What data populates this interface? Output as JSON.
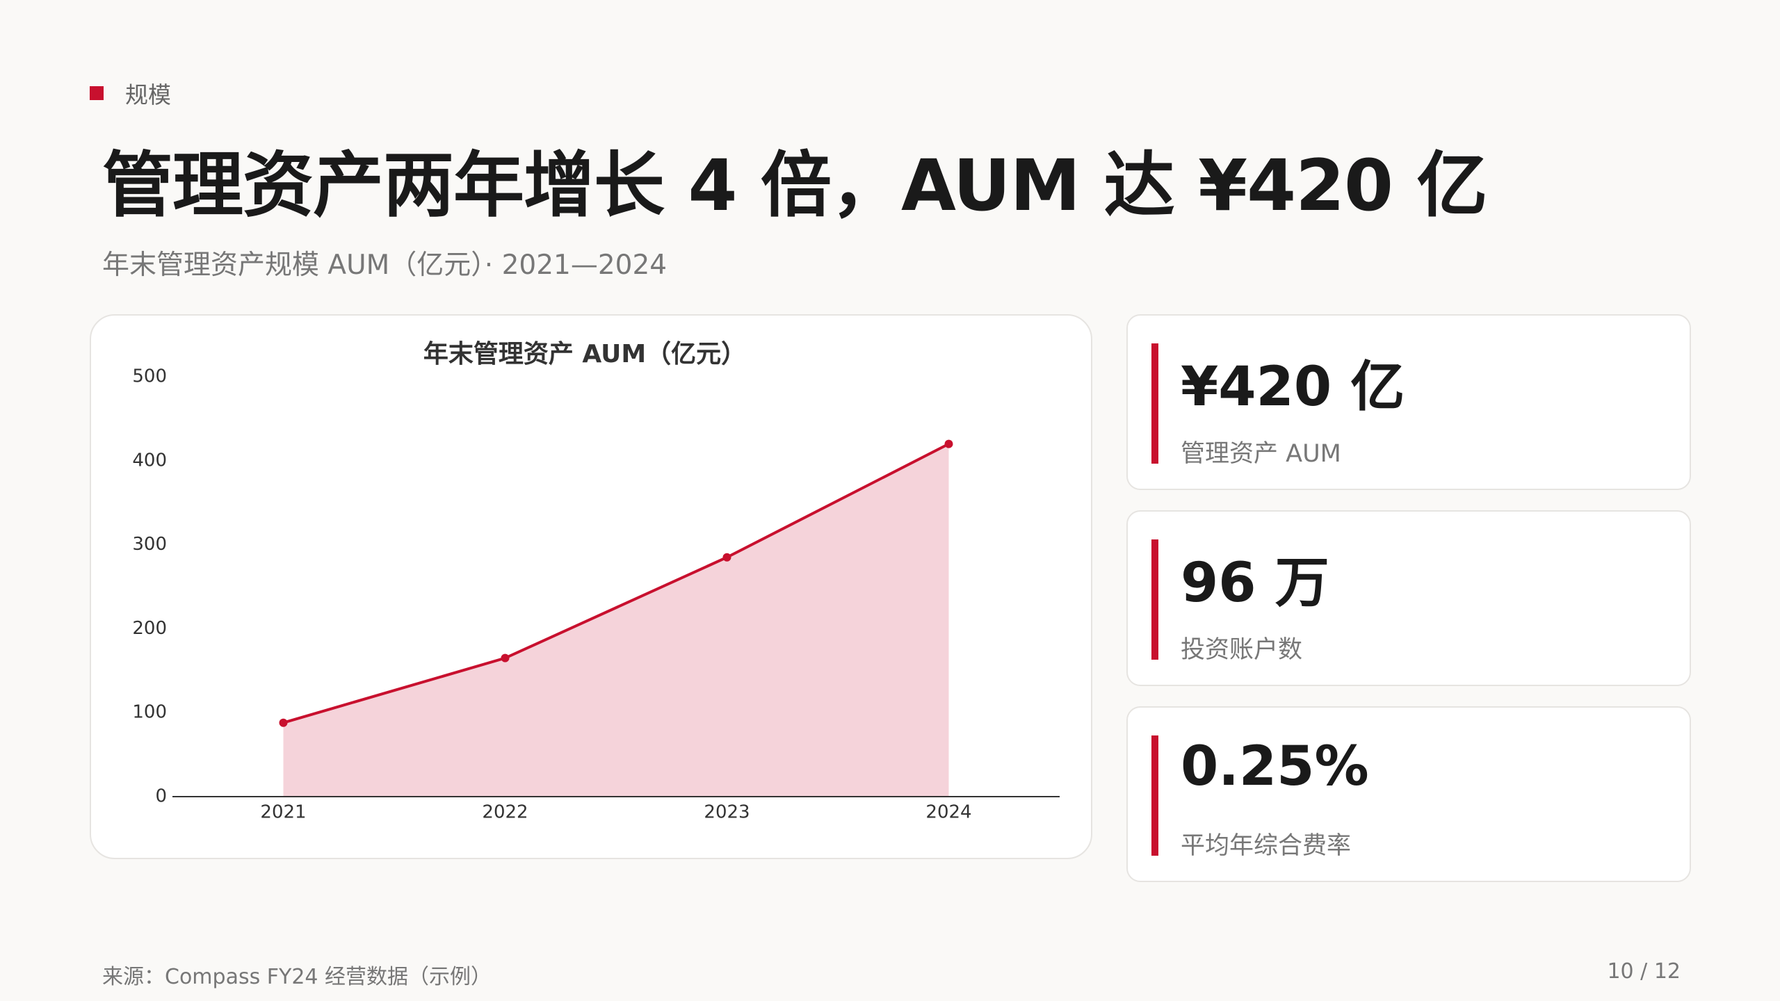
{
  "header": {
    "section": "规模",
    "title": "管理资产两年增长 4 倍，AUM 达 ¥420 亿",
    "subtitle": "年末管理资产规模 AUM（亿元）· 2021—2024"
  },
  "chart_data": {
    "type": "area",
    "title": "年末管理资产 AUM（亿元）",
    "categories": [
      "2021",
      "2022",
      "2023",
      "2024"
    ],
    "values": [
      88,
      165,
      285,
      420
    ],
    "color": "#c8102e",
    "fill_color": "#f5d3da",
    "ylim": [
      0,
      500
    ],
    "yticks": [
      0,
      100,
      200,
      300,
      400,
      500
    ],
    "grid": false
  },
  "kpis": [
    {
      "value": "¥420 亿",
      "label": "管理资产 AUM"
    },
    {
      "value": "96 万",
      "label": "投资账户数"
    },
    {
      "value": "0.25%",
      "label": "平均年综合费率"
    }
  ],
  "footer": {
    "source": "来源：Compass FY24 经营数据（示例）",
    "page": "10 / 12"
  }
}
